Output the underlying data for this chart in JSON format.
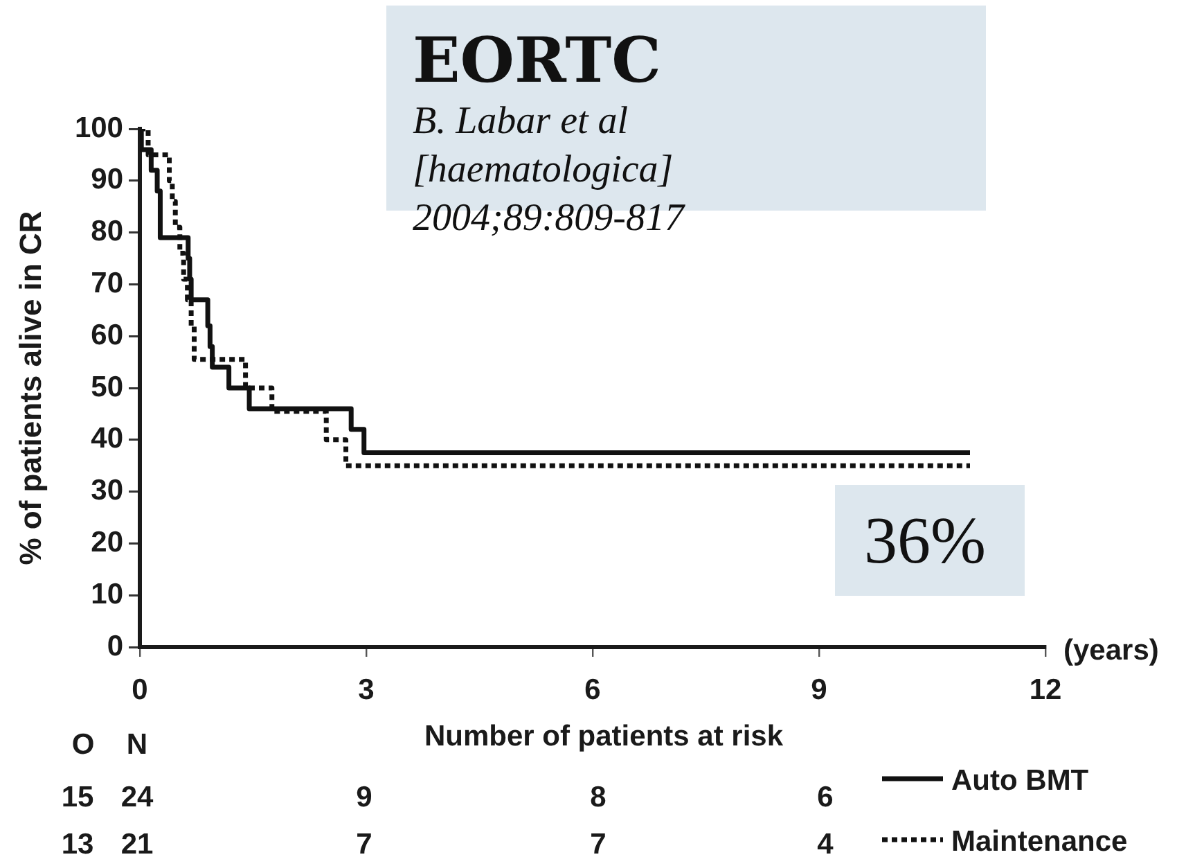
{
  "chart_data": {
    "type": "step",
    "title": "EORTC",
    "xlabel": "(years)",
    "ylabel": "% of patients alive in CR",
    "annotations": [
      "B. Labar et al",
      "[haematologica]",
      "2004;89:809-817",
      "36%",
      "Number of patients at risk",
      "O",
      "N",
      "15",
      "24",
      "9",
      "8",
      "6",
      "13",
      "21",
      "7",
      "7",
      "4"
    ],
    "xlim": [
      0,
      12
    ],
    "xticks": [
      0,
      3,
      6,
      9,
      12
    ],
    "ylim": [
      0,
      100
    ],
    "yticks": [
      0,
      10,
      20,
      30,
      40,
      50,
      60,
      70,
      80,
      90,
      100
    ],
    "legend": "bottom right",
    "series": [
      {
        "name": "Auto BMT",
        "color": "#111111",
        "line_style": "solid",
        "x": [
          0,
          0.02,
          0.15,
          0.23,
          0.27,
          0.64,
          0.66,
          0.68,
          0.9,
          0.93,
          0.96,
          1.18,
          1.45,
          2.8,
          2.97,
          11.0
        ],
        "values": [
          100,
          96,
          92,
          88,
          79,
          75,
          71,
          67,
          62,
          58,
          54,
          50,
          46,
          42,
          37.5,
          37.5
        ]
      },
      {
        "name": "Maintenance",
        "color": "#111111",
        "line_style": "dotted",
        "x": [
          0,
          0.11,
          0.39,
          0.43,
          0.47,
          0.53,
          0.58,
          0.63,
          0.68,
          0.72,
          1.4,
          1.75,
          2.47,
          2.73,
          11.0
        ],
        "values": [
          100,
          95,
          90,
          86,
          81,
          76,
          71,
          67,
          62,
          55.5,
          50,
          45.5,
          40,
          35,
          35
        ]
      }
    ]
  }
}
